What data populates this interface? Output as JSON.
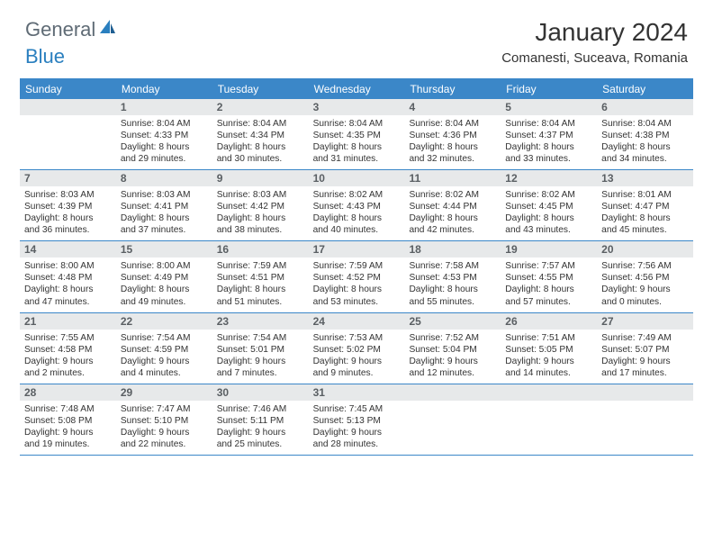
{
  "brand": {
    "text1": "General",
    "text2": "Blue"
  },
  "title": "January 2024",
  "location": "Comanesti, Suceava, Romania",
  "header_bg": "#3b87c8",
  "border_color": "#3b87c8",
  "daynum_bg": "#e7e9ea",
  "weekdays": [
    "Sunday",
    "Monday",
    "Tuesday",
    "Wednesday",
    "Thursday",
    "Friday",
    "Saturday"
  ],
  "weeks": [
    [
      {
        "num": "",
        "lines": []
      },
      {
        "num": "1",
        "lines": [
          "Sunrise: 8:04 AM",
          "Sunset: 4:33 PM",
          "Daylight: 8 hours",
          "and 29 minutes."
        ]
      },
      {
        "num": "2",
        "lines": [
          "Sunrise: 8:04 AM",
          "Sunset: 4:34 PM",
          "Daylight: 8 hours",
          "and 30 minutes."
        ]
      },
      {
        "num": "3",
        "lines": [
          "Sunrise: 8:04 AM",
          "Sunset: 4:35 PM",
          "Daylight: 8 hours",
          "and 31 minutes."
        ]
      },
      {
        "num": "4",
        "lines": [
          "Sunrise: 8:04 AM",
          "Sunset: 4:36 PM",
          "Daylight: 8 hours",
          "and 32 minutes."
        ]
      },
      {
        "num": "5",
        "lines": [
          "Sunrise: 8:04 AM",
          "Sunset: 4:37 PM",
          "Daylight: 8 hours",
          "and 33 minutes."
        ]
      },
      {
        "num": "6",
        "lines": [
          "Sunrise: 8:04 AM",
          "Sunset: 4:38 PM",
          "Daylight: 8 hours",
          "and 34 minutes."
        ]
      }
    ],
    [
      {
        "num": "7",
        "lines": [
          "Sunrise: 8:03 AM",
          "Sunset: 4:39 PM",
          "Daylight: 8 hours",
          "and 36 minutes."
        ]
      },
      {
        "num": "8",
        "lines": [
          "Sunrise: 8:03 AM",
          "Sunset: 4:41 PM",
          "Daylight: 8 hours",
          "and 37 minutes."
        ]
      },
      {
        "num": "9",
        "lines": [
          "Sunrise: 8:03 AM",
          "Sunset: 4:42 PM",
          "Daylight: 8 hours",
          "and 38 minutes."
        ]
      },
      {
        "num": "10",
        "lines": [
          "Sunrise: 8:02 AM",
          "Sunset: 4:43 PM",
          "Daylight: 8 hours",
          "and 40 minutes."
        ]
      },
      {
        "num": "11",
        "lines": [
          "Sunrise: 8:02 AM",
          "Sunset: 4:44 PM",
          "Daylight: 8 hours",
          "and 42 minutes."
        ]
      },
      {
        "num": "12",
        "lines": [
          "Sunrise: 8:02 AM",
          "Sunset: 4:45 PM",
          "Daylight: 8 hours",
          "and 43 minutes."
        ]
      },
      {
        "num": "13",
        "lines": [
          "Sunrise: 8:01 AM",
          "Sunset: 4:47 PM",
          "Daylight: 8 hours",
          "and 45 minutes."
        ]
      }
    ],
    [
      {
        "num": "14",
        "lines": [
          "Sunrise: 8:00 AM",
          "Sunset: 4:48 PM",
          "Daylight: 8 hours",
          "and 47 minutes."
        ]
      },
      {
        "num": "15",
        "lines": [
          "Sunrise: 8:00 AM",
          "Sunset: 4:49 PM",
          "Daylight: 8 hours",
          "and 49 minutes."
        ]
      },
      {
        "num": "16",
        "lines": [
          "Sunrise: 7:59 AM",
          "Sunset: 4:51 PM",
          "Daylight: 8 hours",
          "and 51 minutes."
        ]
      },
      {
        "num": "17",
        "lines": [
          "Sunrise: 7:59 AM",
          "Sunset: 4:52 PM",
          "Daylight: 8 hours",
          "and 53 minutes."
        ]
      },
      {
        "num": "18",
        "lines": [
          "Sunrise: 7:58 AM",
          "Sunset: 4:53 PM",
          "Daylight: 8 hours",
          "and 55 minutes."
        ]
      },
      {
        "num": "19",
        "lines": [
          "Sunrise: 7:57 AM",
          "Sunset: 4:55 PM",
          "Daylight: 8 hours",
          "and 57 minutes."
        ]
      },
      {
        "num": "20",
        "lines": [
          "Sunrise: 7:56 AM",
          "Sunset: 4:56 PM",
          "Daylight: 9 hours",
          "and 0 minutes."
        ]
      }
    ],
    [
      {
        "num": "21",
        "lines": [
          "Sunrise: 7:55 AM",
          "Sunset: 4:58 PM",
          "Daylight: 9 hours",
          "and 2 minutes."
        ]
      },
      {
        "num": "22",
        "lines": [
          "Sunrise: 7:54 AM",
          "Sunset: 4:59 PM",
          "Daylight: 9 hours",
          "and 4 minutes."
        ]
      },
      {
        "num": "23",
        "lines": [
          "Sunrise: 7:54 AM",
          "Sunset: 5:01 PM",
          "Daylight: 9 hours",
          "and 7 minutes."
        ]
      },
      {
        "num": "24",
        "lines": [
          "Sunrise: 7:53 AM",
          "Sunset: 5:02 PM",
          "Daylight: 9 hours",
          "and 9 minutes."
        ]
      },
      {
        "num": "25",
        "lines": [
          "Sunrise: 7:52 AM",
          "Sunset: 5:04 PM",
          "Daylight: 9 hours",
          "and 12 minutes."
        ]
      },
      {
        "num": "26",
        "lines": [
          "Sunrise: 7:51 AM",
          "Sunset: 5:05 PM",
          "Daylight: 9 hours",
          "and 14 minutes."
        ]
      },
      {
        "num": "27",
        "lines": [
          "Sunrise: 7:49 AM",
          "Sunset: 5:07 PM",
          "Daylight: 9 hours",
          "and 17 minutes."
        ]
      }
    ],
    [
      {
        "num": "28",
        "lines": [
          "Sunrise: 7:48 AM",
          "Sunset: 5:08 PM",
          "Daylight: 9 hours",
          "and 19 minutes."
        ]
      },
      {
        "num": "29",
        "lines": [
          "Sunrise: 7:47 AM",
          "Sunset: 5:10 PM",
          "Daylight: 9 hours",
          "and 22 minutes."
        ]
      },
      {
        "num": "30",
        "lines": [
          "Sunrise: 7:46 AM",
          "Sunset: 5:11 PM",
          "Daylight: 9 hours",
          "and 25 minutes."
        ]
      },
      {
        "num": "31",
        "lines": [
          "Sunrise: 7:45 AM",
          "Sunset: 5:13 PM",
          "Daylight: 9 hours",
          "and 28 minutes."
        ]
      },
      {
        "num": "",
        "lines": []
      },
      {
        "num": "",
        "lines": []
      },
      {
        "num": "",
        "lines": []
      }
    ]
  ]
}
